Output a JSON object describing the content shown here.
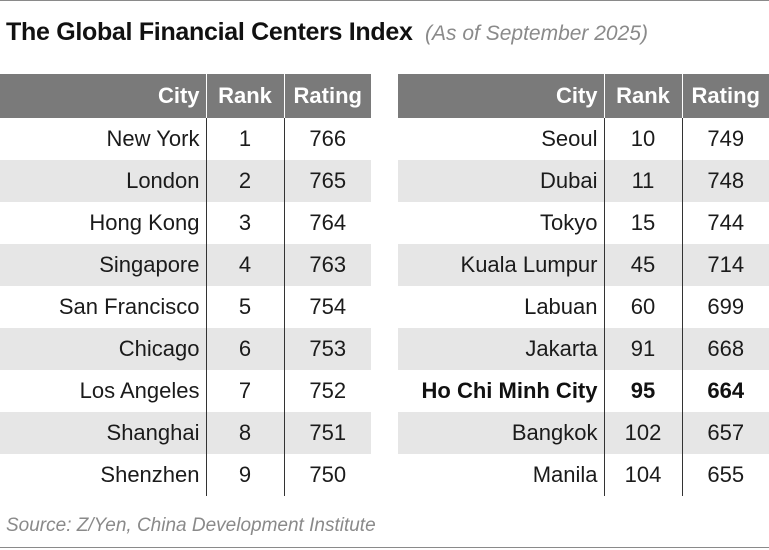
{
  "title": "The Global Financial Centers Index",
  "subtitle": "(As of September 2025)",
  "columns": {
    "city": "City",
    "rank": "Rank",
    "rating": "Rating"
  },
  "left_rows": [
    {
      "city": "New York",
      "rank": "1",
      "rating": "766"
    },
    {
      "city": "London",
      "rank": "2",
      "rating": "765"
    },
    {
      "city": "Hong Kong",
      "rank": "3",
      "rating": "764"
    },
    {
      "city": "Singapore",
      "rank": "4",
      "rating": "763"
    },
    {
      "city": "San Francisco",
      "rank": "5",
      "rating": "754"
    },
    {
      "city": "Chicago",
      "rank": "6",
      "rating": "753"
    },
    {
      "city": "Los Angeles",
      "rank": "7",
      "rating": "752"
    },
    {
      "city": "Shanghai",
      "rank": "8",
      "rating": "751"
    },
    {
      "city": "Shenzhen",
      "rank": "9",
      "rating": "750"
    }
  ],
  "right_rows": [
    {
      "city": "Seoul",
      "rank": "10",
      "rating": "749"
    },
    {
      "city": "Dubai",
      "rank": "11",
      "rating": "748"
    },
    {
      "city": "Tokyo",
      "rank": "15",
      "rating": "744"
    },
    {
      "city": "Kuala Lumpur",
      "rank": "45",
      "rating": "714"
    },
    {
      "city": "Labuan",
      "rank": "60",
      "rating": "699"
    },
    {
      "city": "Jakarta",
      "rank": "91",
      "rating": "668"
    },
    {
      "city": "Ho Chi Minh City",
      "rank": "95",
      "rating": "664",
      "highlight": true
    },
    {
      "city": "Bangkok",
      "rank": "102",
      "rating": "657"
    },
    {
      "city": "Manila",
      "rank": "104",
      "rating": "655"
    }
  ],
  "source": "Source: Z/Yen, China Development Institute",
  "colors": {
    "header_bg": "#7a7a7a",
    "shaded_row": "#e6e6e6",
    "muted_text": "#8a8a8a"
  }
}
